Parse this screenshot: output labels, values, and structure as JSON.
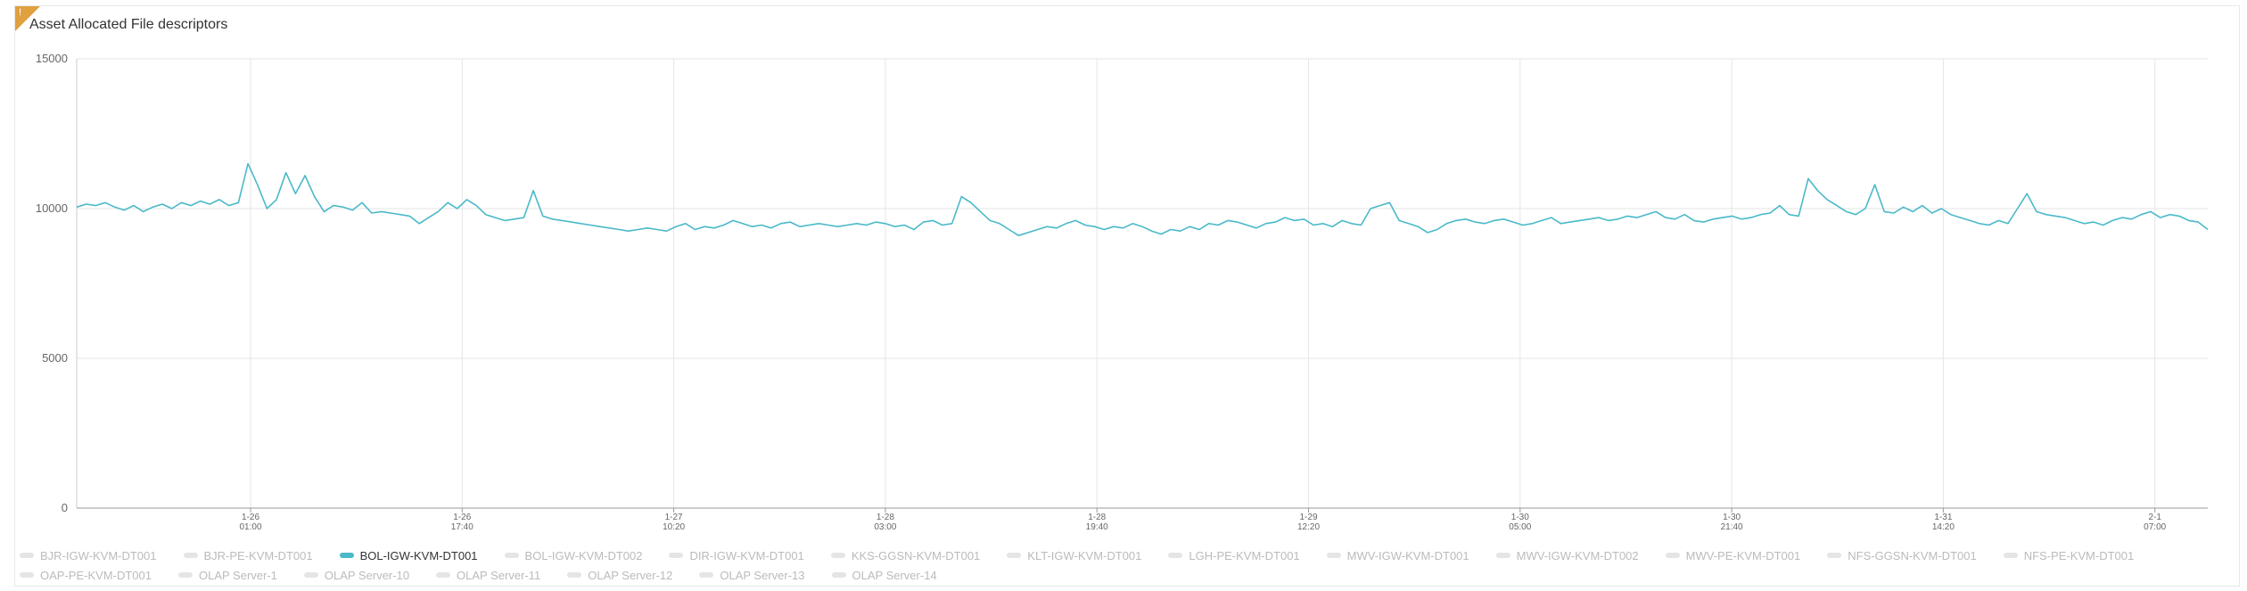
{
  "panel": {
    "title": "Asset Allocated File descriptors",
    "badge": "!"
  },
  "chart_data": {
    "type": "line",
    "title": "Asset Allocated File descriptors",
    "ylim": [
      0,
      15000
    ],
    "y_ticks": [
      "15000",
      "10000",
      "5000",
      "0"
    ],
    "x_ticks": [
      {
        "date": "1-26",
        "time": "01:00"
      },
      {
        "date": "1-26",
        "time": "17:40"
      },
      {
        "date": "1-27",
        "time": "10:20"
      },
      {
        "date": "1-28",
        "time": "03:00"
      },
      {
        "date": "1-28",
        "time": "19:40"
      },
      {
        "date": "1-29",
        "time": "12:20"
      },
      {
        "date": "1-30",
        "time": "05:00"
      },
      {
        "date": "1-30",
        "time": "21:40"
      },
      {
        "date": "1-31",
        "time": "14:20"
      },
      {
        "date": "2-1",
        "time": "07:00"
      }
    ],
    "grid": true,
    "legend_position": "bottom",
    "series": [
      {
        "name": "BOL-IGW-KVM-DT001",
        "color": "#4ab9c8",
        "values": [
          10050,
          10150,
          10100,
          10200,
          10050,
          9950,
          10100,
          9900,
          10050,
          10150,
          10000,
          10200,
          10100,
          10250,
          10150,
          10300,
          10100,
          10200,
          11500,
          10800,
          10000,
          10300,
          11200,
          10500,
          11100,
          10400,
          9900,
          10100,
          10050,
          9950,
          10200,
          9850,
          9900,
          9850,
          9800,
          9750,
          9500,
          9700,
          9900,
          10200,
          10000,
          10300,
          10100,
          9800,
          9700,
          9600,
          9650,
          9700,
          10600,
          9750,
          9650,
          9600,
          9550,
          9500,
          9450,
          9400,
          9350,
          9300,
          9250,
          9300,
          9350,
          9300,
          9250,
          9400,
          9500,
          9300,
          9400,
          9350,
          9450,
          9600,
          9500,
          9400,
          9450,
          9350,
          9500,
          9550,
          9400,
          9450,
          9500,
          9450,
          9400,
          9450,
          9500,
          9450,
          9550,
          9500,
          9400,
          9450,
          9300,
          9550,
          9600,
          9450,
          9500,
          10400,
          10200,
          9900,
          9600,
          9500,
          9300,
          9100,
          9200,
          9300,
          9400,
          9350,
          9500,
          9600,
          9450,
          9400,
          9300,
          9400,
          9350,
          9500,
          9400,
          9250,
          9150,
          9300,
          9250,
          9400,
          9300,
          9500,
          9450,
          9600,
          9550,
          9450,
          9350,
          9500,
          9550,
          9700,
          9600,
          9650,
          9450,
          9500,
          9400,
          9600,
          9500,
          9450,
          10000,
          10100,
          10200,
          9600,
          9500,
          9400,
          9200,
          9300,
          9500,
          9600,
          9650,
          9550,
          9500,
          9600,
          9650,
          9550,
          9450,
          9500,
          9600,
          9700,
          9500,
          9550,
          9600,
          9650,
          9700,
          9600,
          9650,
          9750,
          9700,
          9800,
          9900,
          9700,
          9650,
          9800,
          9600,
          9550,
          9650,
          9700,
          9750,
          9650,
          9700,
          9800,
          9850,
          10100,
          9800,
          9750,
          11000,
          10600,
          10300,
          10100,
          9900,
          9800,
          10000,
          10800,
          9900,
          9850,
          10050,
          9900,
          10100,
          9850,
          10000,
          9800,
          9700,
          9600,
          9500,
          9450,
          9600,
          9500,
          10000,
          10500,
          9900,
          9800,
          9750,
          9700,
          9600,
          9500,
          9550,
          9450,
          9600,
          9700,
          9650,
          9800,
          9900,
          9700,
          9800,
          9750,
          9600,
          9550,
          9300
        ]
      }
    ]
  },
  "legend": {
    "rows": [
      [
        {
          "label": "BJR-IGW-KVM-DT001",
          "active": false
        },
        {
          "label": "BJR-PE-KVM-DT001",
          "active": false
        },
        {
          "label": "BOL-IGW-KVM-DT001",
          "active": true
        },
        {
          "label": "BOL-IGW-KVM-DT002",
          "active": false
        },
        {
          "label": "DIR-IGW-KVM-DT001",
          "active": false
        },
        {
          "label": "KKS-GGSN-KVM-DT001",
          "active": false
        },
        {
          "label": "KLT-IGW-KVM-DT001",
          "active": false
        },
        {
          "label": "LGH-PE-KVM-DT001",
          "active": false
        },
        {
          "label": "MWV-IGW-KVM-DT001",
          "active": false
        },
        {
          "label": "MWV-IGW-KVM-DT002",
          "active": false
        },
        {
          "label": "MWV-PE-KVM-DT001",
          "active": false
        },
        {
          "label": "NFS-GGSN-KVM-DT001",
          "active": false
        },
        {
          "label": "NFS-PE-KVM-DT001",
          "active": false
        }
      ],
      [
        {
          "label": "OAP-PE-KVM-DT001",
          "active": false
        },
        {
          "label": "OLAP Server-1",
          "active": false
        },
        {
          "label": "OLAP Server-10",
          "active": false
        },
        {
          "label": "OLAP Server-11",
          "active": false
        },
        {
          "label": "OLAP Server-12",
          "active": false
        },
        {
          "label": "OLAP Server-13",
          "active": false
        },
        {
          "label": "OLAP Server-14",
          "active": false
        }
      ]
    ]
  }
}
